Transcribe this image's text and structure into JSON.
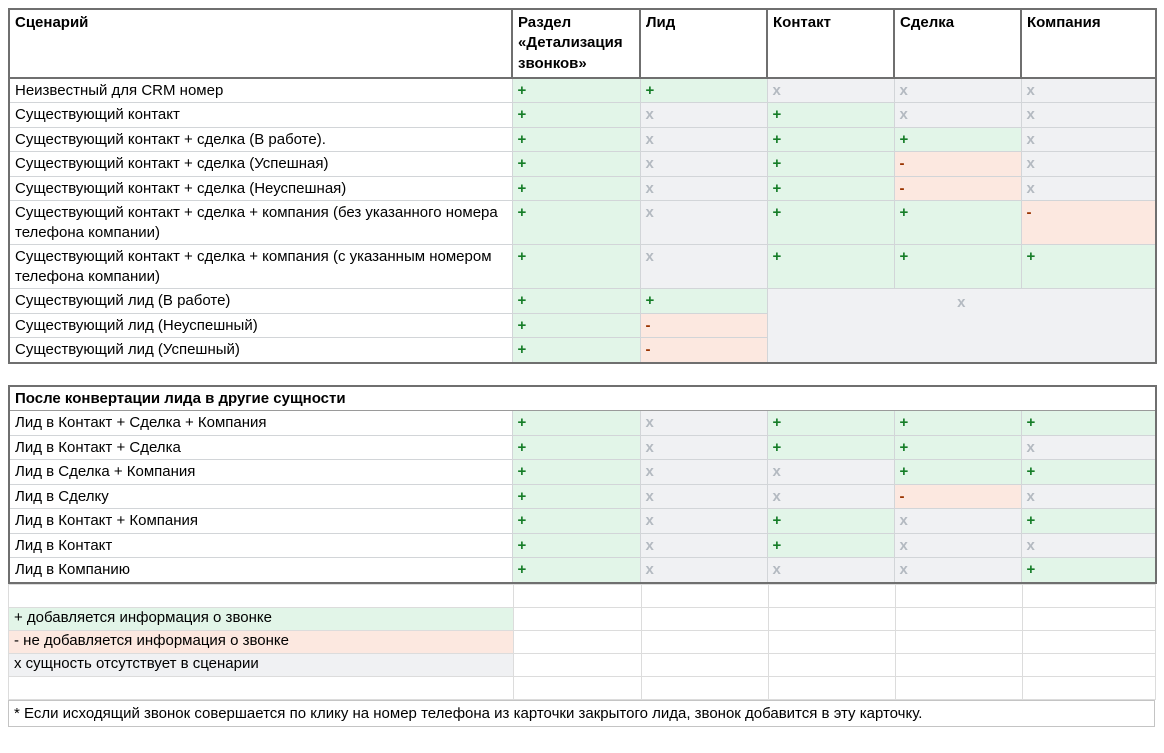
{
  "colors": {
    "green_bg": "#e2f5e8",
    "pink_bg": "#fce8e0",
    "gray_bg": "#f0f1f3",
    "plus_symbol": "#157d27",
    "minus_symbol": "#993300",
    "x_symbol": "#b4bac1"
  },
  "columns": [
    "Сценарий",
    "Раздел «Детализация звонков»",
    "Лид",
    "Контакт",
    "Сделка",
    "Компания"
  ],
  "table1": {
    "rows": [
      {
        "label": "Неизвестный для CRM номер",
        "cells": [
          "+",
          "+",
          "x",
          "x",
          "x"
        ]
      },
      {
        "label": "Существующий контакт",
        "cells": [
          "+",
          "x",
          "+",
          "x",
          "x"
        ]
      },
      {
        "label": "Существующий контакт + сделка (В работе).",
        "cells": [
          "+",
          "x",
          "+",
          "+",
          "x"
        ]
      },
      {
        "label": "Существующий контакт + сделка (Успешная)",
        "cells": [
          "+",
          "x",
          "+",
          "-",
          "x"
        ]
      },
      {
        "label": "Существующий контакт + сделка (Неуспешная)",
        "cells": [
          "+",
          "x",
          "+",
          "-",
          "x"
        ]
      },
      {
        "label": "Существующий контакт + сделка + компания (без указанного номера телефона компании)",
        "cells": [
          "+",
          "x",
          "+",
          "+",
          "-"
        ]
      },
      {
        "label": "Существующий контакт + сделка + компания (с указанным номером телефона компании)",
        "cells": [
          "+",
          "x",
          "+",
          "+",
          "+"
        ]
      },
      {
        "label": "Существующий лид (В работе)",
        "cells": [
          "+",
          "+"
        ],
        "merge": {
          "value": "x",
          "colspan": 3,
          "rowspan": 3
        }
      },
      {
        "label": "Существующий лид (Неуспешный)",
        "cells": [
          "+",
          "-"
        ]
      },
      {
        "label": "Существующий лид (Успешный)",
        "cells": [
          "+",
          "-"
        ]
      }
    ]
  },
  "table2": {
    "title": "После конвертации лида в другие сущности",
    "rows": [
      {
        "label": "Лид в Контакт + Сделка + Компания",
        "cells": [
          "+",
          "x",
          "+",
          "+",
          "+"
        ]
      },
      {
        "label": "Лид в Контакт + Сделка",
        "cells": [
          "+",
          "x",
          "+",
          "+",
          "x"
        ]
      },
      {
        "label": "Лид в Сделка + Компания",
        "cells": [
          "+",
          "x",
          "x",
          "+",
          "+"
        ]
      },
      {
        "label": "Лид в Сделку",
        "cells": [
          "+",
          "x",
          "x",
          "-",
          "x"
        ]
      },
      {
        "label": "Лид в Контакт + Компания",
        "cells": [
          "+",
          "x",
          "+",
          "x",
          "+"
        ]
      },
      {
        "label": "Лид в Контакт",
        "cells": [
          "+",
          "x",
          "+",
          "x",
          "x"
        ]
      },
      {
        "label": "Лид в Компанию",
        "cells": [
          "+",
          "x",
          "x",
          "x",
          "+"
        ]
      }
    ]
  },
  "legend": {
    "items": [
      {
        "text": "+ добавляется информация о звонке",
        "type": "green"
      },
      {
        "text": "- не добавляется информация о звонке",
        "type": "pink"
      },
      {
        "text": "х сущность отсутствует в сценарии",
        "type": "gray"
      }
    ]
  },
  "footnote": "* Если исходящий звонок совершается по клику на номер телефона из карточки закрытого лида, звонок добавится в эту карточку."
}
